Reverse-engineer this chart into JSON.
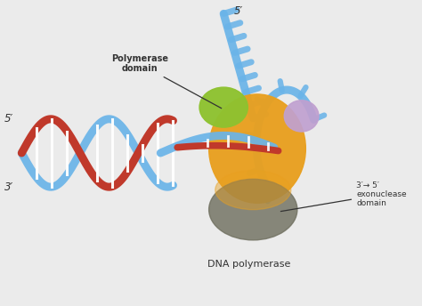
{
  "bg_color": "#ebebeb",
  "labels": {
    "polymerase_domain": "Polymerase\ndomain",
    "exonuclease_domain": "3′→ 5′\nexonuclease\ndomain",
    "dna_polymerase": "DNA polymerase",
    "five_prime_left": "5′",
    "three_prime_left": "3′",
    "five_prime_top": "5′"
  },
  "colors": {
    "blue_dna": "#6ab4e8",
    "red_dna": "#c0392b",
    "orange_body": "#e8a020",
    "green_domain": "#8ec230",
    "purple_domain": "#c0a0d0",
    "dark_domain": "#707060",
    "bg": "#ebebeb",
    "text": "#333333"
  }
}
